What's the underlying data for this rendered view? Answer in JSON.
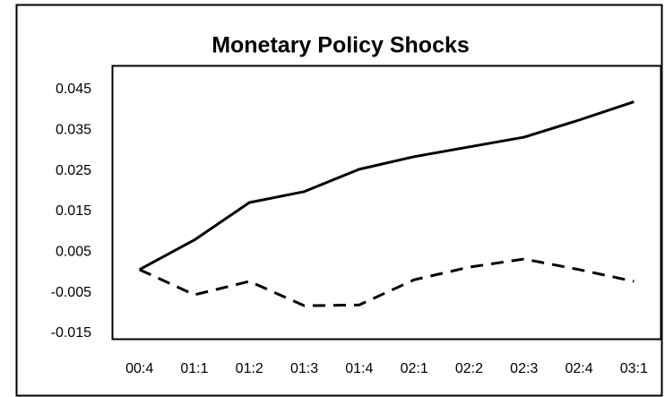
{
  "chart_data": {
    "type": "line",
    "title": "Monetary Policy Shocks",
    "categories": [
      "00:4",
      "01:1",
      "01:2",
      "01:3",
      "01:4",
      "02:1",
      "02:2",
      "02:3",
      "02:4",
      "03:1"
    ],
    "series": [
      {
        "color": "#000000",
        "line_style": "solid",
        "values": [
          0.0007,
          0.008,
          0.0172,
          0.0199,
          0.0254,
          0.0285,
          0.0309,
          0.0333,
          0.0375,
          0.042
        ]
      },
      {
        "color": "#000000",
        "line_style": "dashed",
        "values": [
          0.0007,
          -0.0055,
          -0.0022,
          -0.0082,
          -0.008,
          -0.0018,
          0.0013,
          0.0033,
          0.0007,
          -0.0022
        ]
      }
    ],
    "ylim": [
      -0.015,
      0.045
    ],
    "yticks": [
      -0.015,
      -0.005,
      0.005,
      0.015,
      0.025,
      0.035,
      0.045
    ],
    "grid": false
  }
}
